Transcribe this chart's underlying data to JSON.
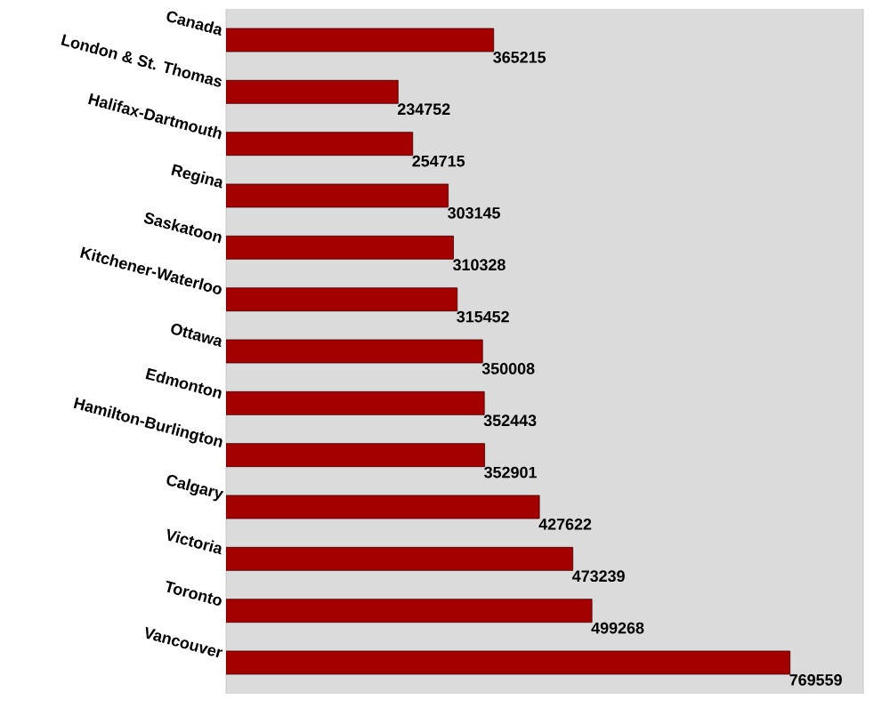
{
  "chart_data": {
    "type": "bar",
    "orientation": "horizontal",
    "data_labels": true,
    "color": "#a50000",
    "categories": [
      "Canada",
      "London & St. Thomas",
      "Halifax-Dartmouth",
      "Regina",
      "Saskatoon",
      "Kitchener-Waterloo",
      "Ottawa",
      "Edmonton",
      "Hamilton-Burlington",
      "Calgary",
      "Victoria",
      "Toronto",
      "Vancouver"
    ],
    "values": [
      365215,
      234752,
      254715,
      303145,
      310328,
      315452,
      350008,
      352443,
      352901,
      427622,
      473239,
      499268,
      769559
    ]
  }
}
